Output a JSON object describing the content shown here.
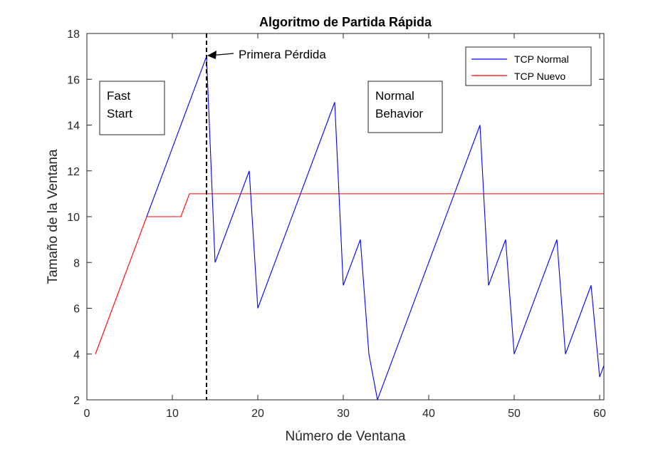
{
  "chart_data": {
    "type": "line",
    "title": "Algoritmo de Partida Rápida",
    "xlabel": "Número de Ventana",
    "ylabel": "Tamaño de la Ventana",
    "xlim": [
      0,
      60.5
    ],
    "ylim": [
      2,
      18
    ],
    "xticks": [
      0,
      10,
      20,
      30,
      40,
      50,
      60
    ],
    "yticks": [
      2,
      4,
      6,
      8,
      10,
      12,
      14,
      16,
      18
    ],
    "grid": false,
    "legend_position": "top-right",
    "series": [
      {
        "name": "TCP Normal",
        "color": "#0000ff",
        "points": [
          [
            7,
            10
          ],
          [
            14,
            17
          ],
          [
            15,
            8
          ],
          [
            19,
            12
          ],
          [
            20,
            6
          ],
          [
            29,
            15
          ],
          [
            30,
            7
          ],
          [
            32,
            9
          ],
          [
            33,
            4
          ],
          [
            34,
            2
          ],
          [
            46,
            14
          ],
          [
            47,
            7
          ],
          [
            49,
            9
          ],
          [
            50,
            4
          ],
          [
            55,
            9
          ],
          [
            56,
            4
          ],
          [
            59,
            7
          ],
          [
            60,
            3
          ],
          [
            60.5,
            3.5
          ]
        ]
      },
      {
        "name": "TCP Nuevo",
        "color": "#ff0000",
        "points": [
          [
            1,
            4
          ],
          [
            7,
            10
          ],
          [
            11,
            10
          ],
          [
            12,
            11
          ],
          [
            60.5,
            11
          ]
        ]
      }
    ],
    "vline": {
      "x": 14,
      "style": "dashed",
      "color": "#000000"
    },
    "annotations": [
      {
        "text": "Primera Pérdida",
        "arrow_to": [
          14,
          17
        ],
        "text_at": [
          18,
          17
        ]
      },
      {
        "text": "Fast\nStart",
        "box": true
      },
      {
        "text": "Normal\nBehavior",
        "box": true
      }
    ]
  }
}
